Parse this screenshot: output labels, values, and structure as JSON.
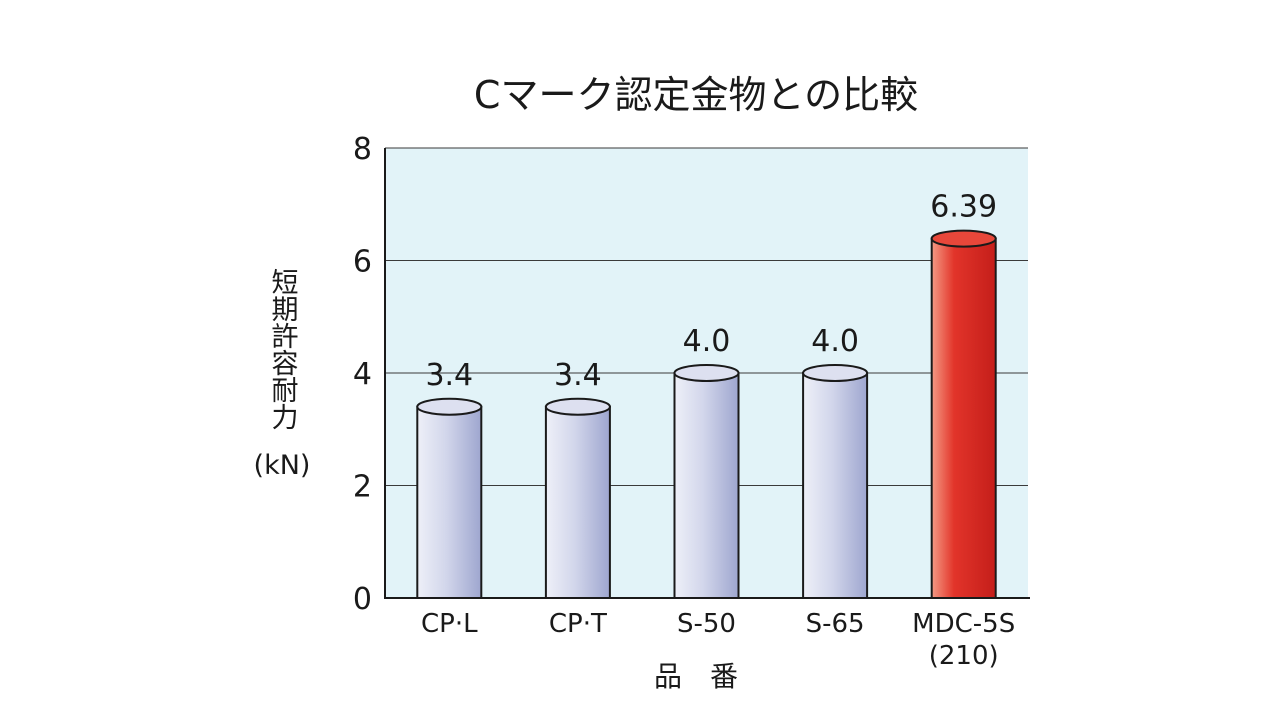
{
  "chart_data": {
    "type": "bar",
    "title": "Cマーク認定金物との比較",
    "xlabel": "品　番",
    "ylabel": "短期許容耐力",
    "ylabel_unit": "(kN)",
    "categories": [
      "CP·L",
      "CP·T",
      "S-50",
      "S-65",
      "MDC-5S"
    ],
    "category_sublabels": [
      "",
      "",
      "",
      "",
      "(210)"
    ],
    "values": [
      3.4,
      3.4,
      4.0,
      4.0,
      6.39
    ],
    "value_labels": [
      "3.4",
      "3.4",
      "4.0",
      "4.0",
      "6.39"
    ],
    "ylim": [
      0,
      8
    ],
    "yticks": [
      0,
      2,
      4,
      6,
      8
    ],
    "grid": true,
    "colors": {
      "plot_background": "#e2f3f8",
      "standard_bar": "#c3c8e2",
      "highlight_bar": "#d82a24"
    },
    "highlight_index": 4
  }
}
